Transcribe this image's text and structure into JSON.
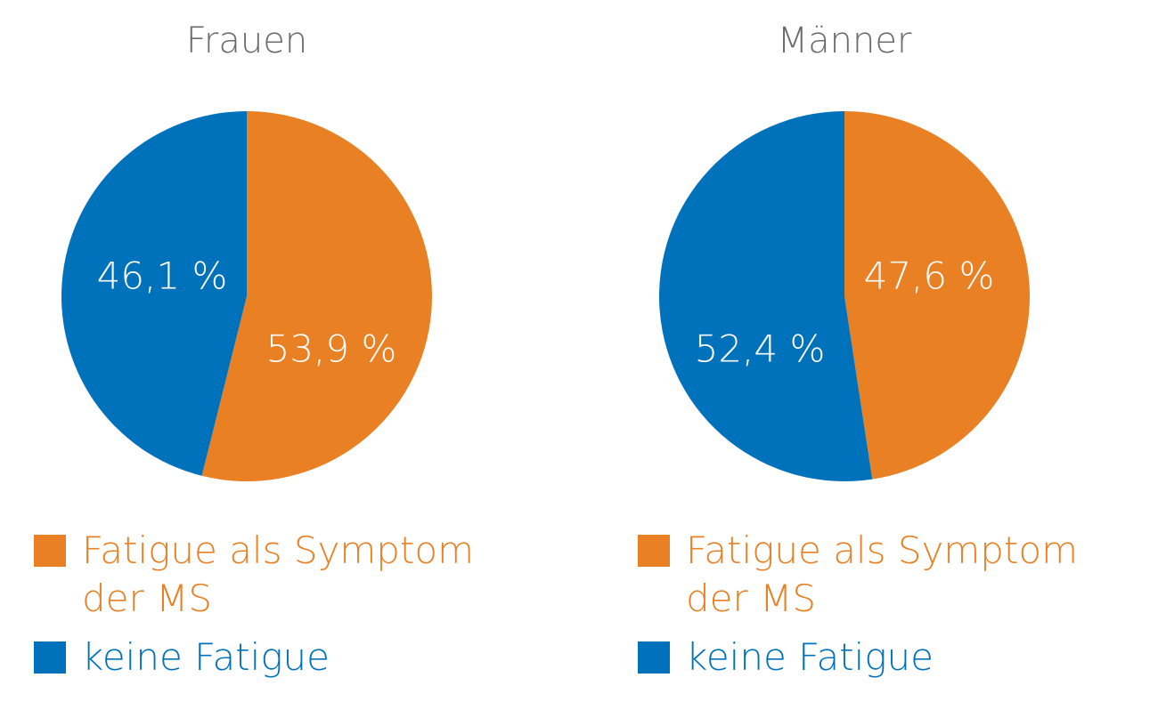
{
  "chart_data": [
    {
      "type": "pie",
      "title": "Frauen",
      "categories": [
        "Fatigue als Symptom der MS",
        "keine Fatigue"
      ],
      "values": [
        53.9,
        46.1
      ],
      "value_labels": [
        "53,9 %",
        "46,1 %"
      ],
      "colors": [
        "#e98024",
        "#0072bc"
      ]
    },
    {
      "type": "pie",
      "title": "Männer",
      "categories": [
        "Fatigue als Symptom der MS",
        "keine Fatigue"
      ],
      "values": [
        47.6,
        52.4
      ],
      "value_labels": [
        "47,6 %",
        "52,4 %"
      ],
      "colors": [
        "#e98024",
        "#0072bc"
      ]
    }
  ]
}
